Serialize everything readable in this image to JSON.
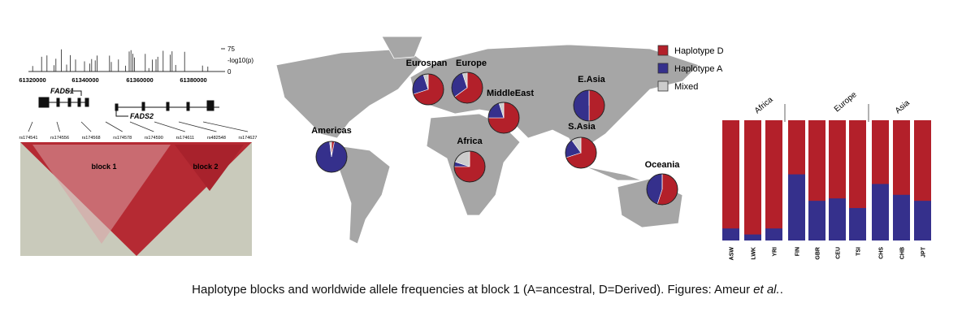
{
  "genome": {
    "ylabel": "-log10(p)",
    "yticks": [
      "75",
      "0"
    ],
    "positions": [
      "61320000",
      "61340000",
      "61360000",
      "61380000"
    ],
    "genes": [
      "FADS1",
      "FADS2"
    ],
    "snps": [
      "rs174541",
      "rs174556",
      "rs174568",
      "rs174578",
      "rs174590",
      "rs174611",
      "rs482548",
      "rs174627"
    ],
    "blocks": [
      "block 1",
      "block 2"
    ]
  },
  "map": {
    "legend": [
      {
        "label": "Haplotype D",
        "color": "#b3202a"
      },
      {
        "label": "Haplotype A",
        "color": "#35308c"
      },
      {
        "label": "Mixed",
        "color": "#cccccc"
      }
    ],
    "regions": [
      {
        "name": "Eurospan",
        "values": [
          70,
          25,
          5
        ]
      },
      {
        "name": "Europe",
        "values": [
          65,
          30,
          5
        ]
      },
      {
        "name": "MiddleEast",
        "values": [
          75,
          20,
          5
        ]
      },
      {
        "name": "E.Asia",
        "values": [
          50,
          50,
          0
        ]
      },
      {
        "name": "S.Asia",
        "values": [
          70,
          20,
          10
        ]
      },
      {
        "name": "Africa",
        "values": [
          75,
          5,
          20
        ]
      },
      {
        "name": "Americas",
        "values": [
          3,
          95,
          2
        ]
      },
      {
        "name": "Oceania",
        "values": [
          55,
          45,
          0
        ]
      }
    ]
  },
  "bars": {
    "groups": [
      "Africa",
      "Europe",
      "Asia"
    ],
    "populations": [
      "ASW",
      "LWK",
      "YRI",
      "FIN",
      "GBR",
      "CEU",
      "TSI",
      "CHS",
      "CHB",
      "JPT"
    ],
    "haplotype_a": [
      0.1,
      0.05,
      0.1,
      0.55,
      0.33,
      0.35,
      0.27,
      0.47,
      0.38,
      0.33
    ]
  },
  "caption": {
    "text": "Haplotype blocks and worldwide allele frequencies at block 1 (A=ancestral, D=Derived). Figures: Ameur",
    "emphasis": "et al.",
    "end": "."
  }
}
